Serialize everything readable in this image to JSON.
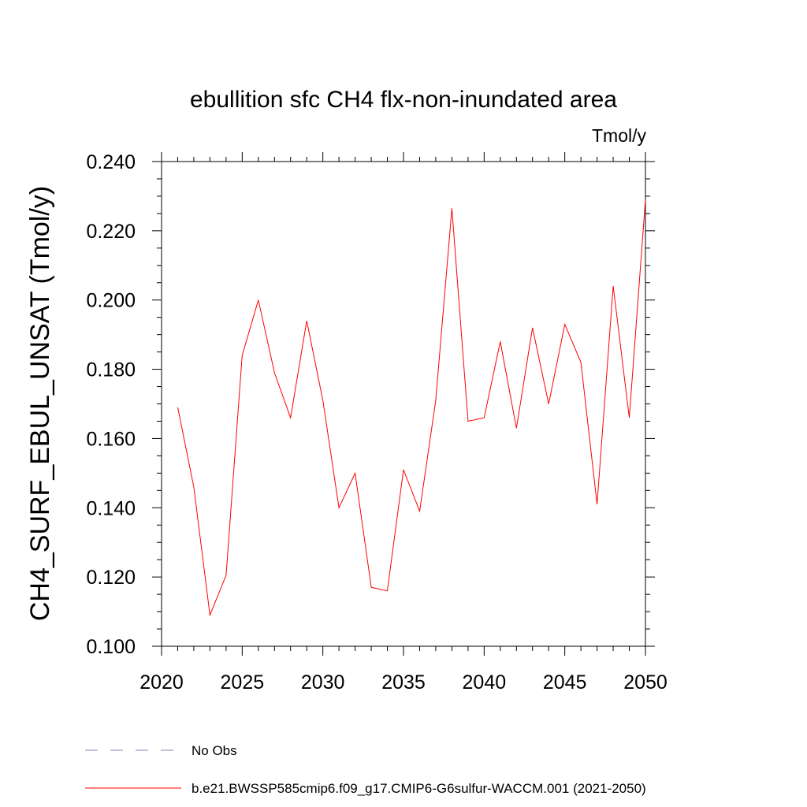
{
  "chart_data": {
    "type": "line",
    "title": "ebullition sfc CH4 flx-non-inundated area",
    "units_label": "Tmol/y",
    "ylabel": "CH4_SURF_EBUL_UNSAT  (Tmol/y)",
    "xlabel": "",
    "xlim": [
      2020,
      2050
    ],
    "ylim": [
      0.1,
      0.24
    ],
    "x_ticks": [
      "2020",
      "2025",
      "2030",
      "2035",
      "2040",
      "2045",
      "2050"
    ],
    "y_ticks": [
      "0.100",
      "0.120",
      "0.140",
      "0.160",
      "0.180",
      "0.200",
      "0.220",
      "0.240"
    ],
    "grid": false,
    "series": [
      {
        "name": "b.e21.BWSSP585cmip6.f09_g17.CMIP6-G6sulfur-WACCM.001 (2021-2050)",
        "color": "#ff0000",
        "x": [
          2021,
          2022,
          2023,
          2024,
          2025,
          2026,
          2027,
          2028,
          2029,
          2030,
          2031,
          2032,
          2033,
          2034,
          2035,
          2036,
          2037,
          2038,
          2039,
          2040,
          2041,
          2042,
          2043,
          2044,
          2045,
          2046,
          2047,
          2048,
          2049,
          2050
        ],
        "values": [
          0.169,
          0.146,
          0.109,
          0.1205,
          0.184,
          0.2,
          0.179,
          0.166,
          0.194,
          0.171,
          0.14,
          0.15,
          0.117,
          0.116,
          0.151,
          0.139,
          0.171,
          0.2265,
          0.165,
          0.166,
          0.188,
          0.163,
          0.192,
          0.17,
          0.193,
          0.182,
          0.141,
          0.204,
          0.166,
          0.229
        ]
      }
    ],
    "legend": {
      "placement": "bottom-left",
      "entries": [
        {
          "label": "No Obs",
          "color": "#8080c0",
          "style": "dashed"
        },
        {
          "label": "b.e21.BWSSP585cmip6.f09_g17.CMIP6-G6sulfur-WACCM.001 (2021-2050)",
          "color": "#ff0000",
          "style": "solid"
        }
      ]
    }
  }
}
